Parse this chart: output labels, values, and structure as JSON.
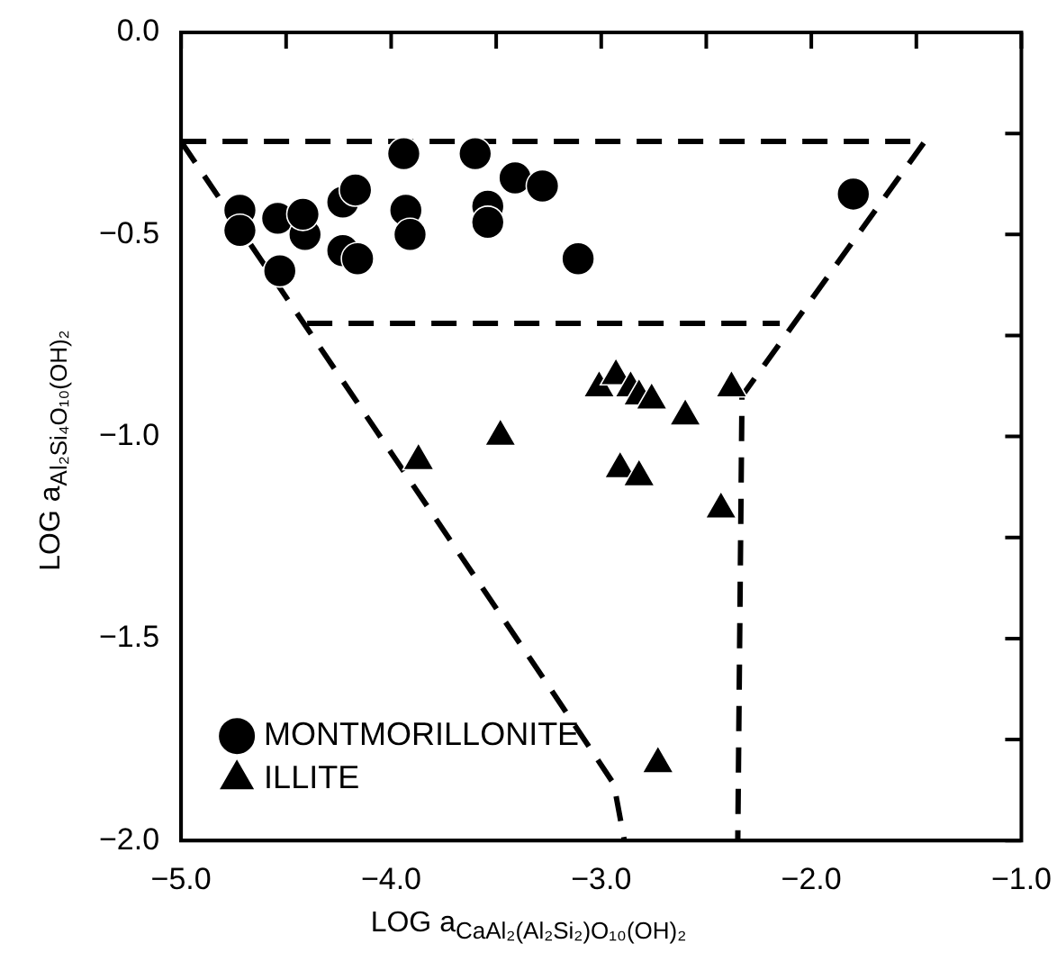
{
  "chart_data": {
    "type": "scatter",
    "xlabel": "LOG a$_{CaAl₂(Al₂Si₂)O₁₀(OH)₂}$",
    "ylabel": "LOG a$_{Al₂Si₄O₁₀(OH)₂}$",
    "xlim": [
      -5,
      -1
    ],
    "ylim": [
      -2,
      0
    ],
    "xticks": [
      {
        "value": -5,
        "label": "−5.0"
      },
      {
        "value": -4.5,
        "label": null
      },
      {
        "value": -4,
        "label": "−4.0"
      },
      {
        "value": -3.5,
        "label": null
      },
      {
        "value": -3,
        "label": "−3.0"
      },
      {
        "value": -2.5,
        "label": null
      },
      {
        "value": -2,
        "label": "−2.0"
      },
      {
        "value": -1.5,
        "label": null
      },
      {
        "value": -1,
        "label": "−1.0"
      }
    ],
    "yticks": [
      {
        "value": -2,
        "label": "−2.0"
      },
      {
        "value": -1.75,
        "label": null
      },
      {
        "value": -1.5,
        "label": "−1.5"
      },
      {
        "value": -1.25,
        "label": null
      },
      {
        "value": -1,
        "label": "−1.0"
      },
      {
        "value": -0.75,
        "label": null
      },
      {
        "value": -0.5,
        "label": "−0.5"
      },
      {
        "value": -0.25,
        "label": null
      },
      {
        "value": 0,
        "label": "0.0"
      }
    ],
    "grid": false,
    "legend": "bottom left",
    "series": [
      {
        "name": "MONTMORILLONITE",
        "color": "#000000",
        "marker": "circle",
        "x": [
          -4.72,
          -4.72,
          -4.54,
          -4.41,
          -4.42,
          -4.53,
          -4.23,
          -4.17,
          -4.23,
          -4.16,
          -3.94,
          -3.93,
          -3.91,
          -3.6,
          -3.54,
          -3.54,
          -3.41,
          -3.28,
          -3.11,
          -1.8
        ],
        "values": [
          -0.44,
          -0.49,
          -0.46,
          -0.5,
          -0.45,
          -0.59,
          -0.42,
          -0.39,
          -0.54,
          -0.56,
          -0.3,
          -0.44,
          -0.5,
          -0.3,
          -0.43,
          -0.47,
          -0.36,
          -0.38,
          -0.56,
          -0.4
        ]
      },
      {
        "name": "ILLITE",
        "color": "#000000",
        "marker": "triangle",
        "x": [
          -3.01,
          -2.93,
          -2.86,
          -2.82,
          -2.76,
          -2.6,
          -2.38,
          -3.48,
          -3.87,
          -2.91,
          -2.82,
          -2.43,
          -2.73
        ],
        "values": [
          -0.88,
          -0.85,
          -0.88,
          -0.9,
          -0.91,
          -0.95,
          -0.88,
          -1.0,
          -1.06,
          -1.08,
          -1.1,
          -1.18,
          -1.81
        ]
      },
      {
        "type": "line",
        "color": "#000000",
        "marker": "none",
        "line_style": "dashed",
        "x": [
          -5,
          -1.46,
          -2.33,
          -2.35
        ],
        "values": [
          -0.27,
          -0.27,
          -0.9,
          -2
        ]
      },
      {
        "type": "line",
        "color": "#000000",
        "marker": "none",
        "line_style": "dashed",
        "x": [
          -5,
          -3.26,
          -2.94,
          -2.89
        ],
        "values": [
          -0.27,
          -1.61,
          -1.86,
          -2
        ]
      },
      {
        "type": "line",
        "color": "#000000",
        "marker": "none",
        "line_style": "dashed",
        "x": [
          -4.4,
          -2.15
        ],
        "values": [
          -0.72,
          -0.72
        ]
      }
    ]
  }
}
